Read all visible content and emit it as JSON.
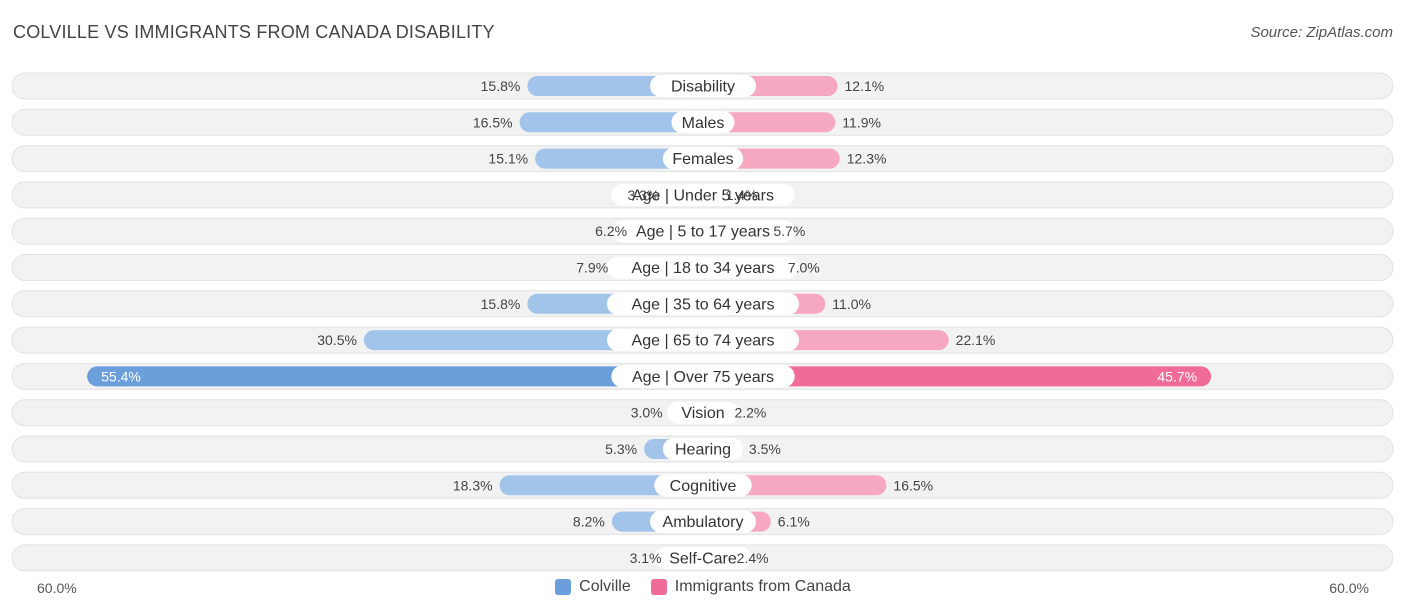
{
  "header": {
    "title": "COLVILLE VS IMMIGRANTS FROM CANADA DISABILITY",
    "source": "Source: ZipAtlas.com"
  },
  "axis": {
    "left_label": "60.0%",
    "right_label": "60.0%"
  },
  "legend": [
    {
      "name": "Colville",
      "color": "#6a9fdc"
    },
    {
      "name": "Immigrants from Canada",
      "color": "#f06b97"
    }
  ],
  "chart_data": {
    "type": "bar",
    "orientation": "horizontal-diverging",
    "title": "COLVILLE VS IMMIGRANTS FROM CANADA DISABILITY",
    "xlim": [
      -60,
      60
    ],
    "categories": [
      "Disability",
      "Males",
      "Females",
      "Age | Under 5 years",
      "Age | 5 to 17 years",
      "Age | 18 to 34 years",
      "Age | 35 to 64 years",
      "Age | 65 to 74 years",
      "Age | Over 75 years",
      "Vision",
      "Hearing",
      "Cognitive",
      "Ambulatory",
      "Self-Care"
    ],
    "series": [
      {
        "name": "Colville",
        "values": [
          15.8,
          16.5,
          15.1,
          3.3,
          6.2,
          7.9,
          15.8,
          30.5,
          55.4,
          3.0,
          5.3,
          18.3,
          8.2,
          3.1
        ],
        "labels": [
          "15.8%",
          "16.5%",
          "15.1%",
          "3.3%",
          "6.2%",
          "7.9%",
          "15.8%",
          "30.5%",
          "55.4%",
          "3.0%",
          "5.3%",
          "18.3%",
          "8.2%",
          "3.1%"
        ]
      },
      {
        "name": "Immigrants from Canada",
        "values": [
          12.1,
          11.9,
          12.3,
          1.4,
          5.7,
          7.0,
          11.0,
          22.1,
          45.7,
          2.2,
          3.5,
          16.5,
          6.1,
          2.4
        ],
        "labels": [
          "12.1%",
          "11.9%",
          "12.3%",
          "1.4%",
          "5.7%",
          "7.0%",
          "11.0%",
          "22.1%",
          "45.7%",
          "2.2%",
          "3.5%",
          "16.5%",
          "6.1%",
          "2.4%"
        ]
      }
    ],
    "colors": {
      "left": "#a3c4ea",
      "left_dark": "#6a9fdc",
      "right": "#f5a8c0",
      "right_dark": "#f06b97",
      "row_bg": "#f2f2f2"
    }
  }
}
